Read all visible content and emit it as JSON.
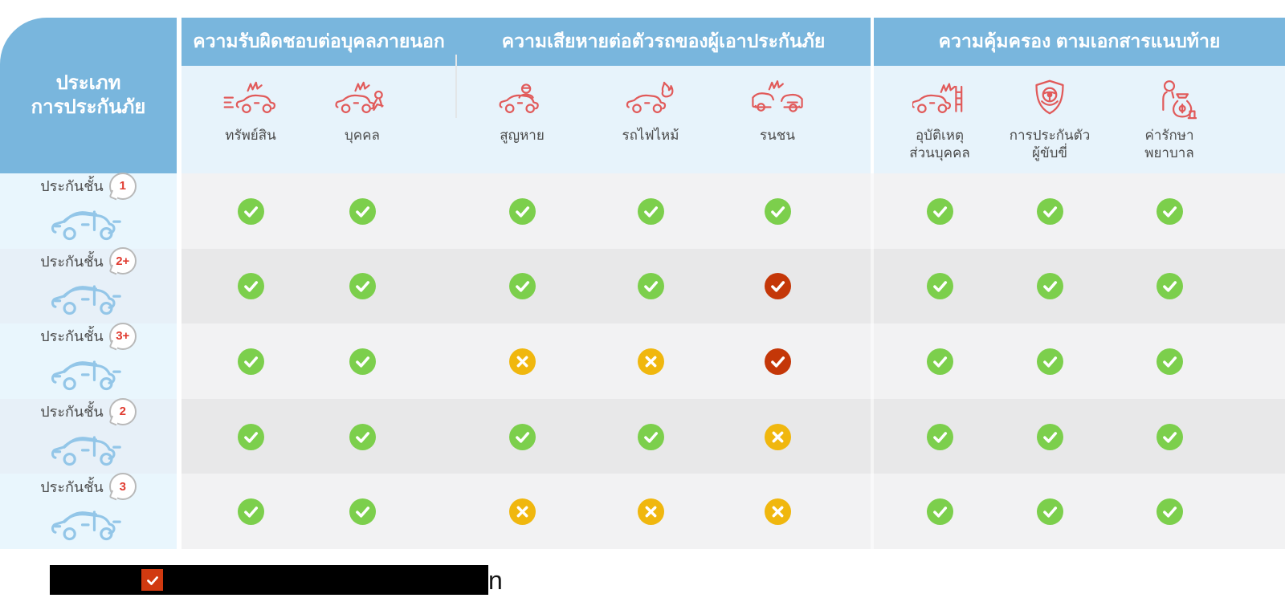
{
  "colors": {
    "header_blue": "#79b6dd",
    "subheader_blue": "#e7f3fb",
    "label_row_odd": "#e9f6fd",
    "label_row_even": "#e7f0f8",
    "data_row_odd": "#f2f2f3",
    "data_row_even": "#e8e8e9",
    "check_green": "#7ccf4c",
    "x_yellow": "#f0b70e",
    "check_red": "#c43708",
    "footnote_square_red": "#d13a10",
    "icon_red": "#e15a5a",
    "car_blue": "#93c6e8",
    "label_text": "#4c4c4c",
    "badge_text_red": "#e03c31"
  },
  "table": {
    "row_header_title_lines": [
      "ประเภท",
      "การประกันภัย"
    ],
    "groups": [
      {
        "title": "ความรับผิดชอบต่อบุคลภายนอก",
        "columns": [
          {
            "label_lines": [
              "ทรัพย์สิน"
            ],
            "icon": "car-rear-crash-icon"
          },
          {
            "label_lines": [
              "บุคคล"
            ],
            "icon": "car-hit-person-icon"
          }
        ]
      },
      {
        "title": "ความเสียหายต่อตัวรถของผู้เอาประกันภัย",
        "columns": [
          {
            "label_lines": [
              "สูญหาย"
            ],
            "icon": "car-theft-icon"
          },
          {
            "label_lines": [
              "รถไฟไหม้"
            ],
            "icon": "car-fire-icon"
          },
          {
            "label_lines": [
              "รนชน"
            ],
            "icon": "car-collision-icon"
          }
        ]
      },
      {
        "title": "ความคุ้มครอง ตามเอกสารแนบท้าย",
        "columns": [
          {
            "label_lines": [
              "อุบัติเหตุ",
              "ส่วนบุคคล"
            ],
            "icon": "car-pole-accident-icon"
          },
          {
            "label_lines": [
              "การประกันตัว",
              "ผู้ขับขี่"
            ],
            "icon": "driver-shield-icon"
          },
          {
            "label_lines": [
              "ค่ารักษา",
              "พยาบาล"
            ],
            "icon": "medical-money-icon"
          }
        ]
      }
    ],
    "rows": [
      {
        "label": "ประกันชั้น",
        "badge": "1",
        "car_icon": "car-suv-icon",
        "marks": [
          "check-green",
          "check-green",
          "check-green",
          "check-green",
          "check-green",
          "check-green",
          "check-green",
          "check-green"
        ]
      },
      {
        "label": "ประกันชั้น",
        "badge": "2+",
        "car_icon": "car-suv-icon",
        "marks": [
          "check-green",
          "check-green",
          "check-green",
          "check-green",
          "check-red",
          "check-green",
          "check-green",
          "check-green"
        ]
      },
      {
        "label": "ประกันชั้น",
        "badge": "3+",
        "car_icon": "car-suv-icon",
        "marks": [
          "check-green",
          "check-green",
          "x-yellow",
          "x-yellow",
          "check-red",
          "check-green",
          "check-green",
          "check-green"
        ]
      },
      {
        "label": "ประกันชั้น",
        "badge": "2",
        "car_icon": "car-suv-icon",
        "marks": [
          "check-green",
          "check-green",
          "check-green",
          "check-green",
          "x-yellow",
          "check-green",
          "check-green",
          "check-green"
        ]
      },
      {
        "label": "ประกันชั้น",
        "badge": "3",
        "car_icon": "car-suv-icon",
        "marks": [
          "check-green",
          "check-green",
          "x-yellow",
          "x-yellow",
          "x-yellow",
          "check-green",
          "check-green",
          "check-green"
        ]
      }
    ]
  },
  "footnote": {
    "redacted_bar": true,
    "icon": "check-square-red-icon",
    "tail_text": "n"
  },
  "chart_data": {
    "type": "table",
    "title": "",
    "row_header": "ประเภท การประกันภัย",
    "column_groups": [
      "ความรับผิดชอบต่อบุคลภายนอก",
      "ความเสียหายต่อตัวรถของผู้เอาประกันภัย",
      "ความคุ้มครอง ตามเอกสารแนบท้าย"
    ],
    "columns": [
      "ทรัพย์สิน",
      "บุคคล",
      "สูญหาย",
      "รถไฟไหม้",
      "รนชน",
      "อุบัติเหตุส่วนบุคคล",
      "การประกันตัวผู้ขับขี่",
      "ค่ารักษาพยาบาล"
    ],
    "rows": [
      "ประกันชั้น 1",
      "ประกันชั้น 2+",
      "ประกันชั้น 3+",
      "ประกันชั้น 2",
      "ประกันชั้น 3"
    ],
    "values": [
      [
        "covered",
        "covered",
        "covered",
        "covered",
        "covered",
        "covered",
        "covered",
        "covered"
      ],
      [
        "covered",
        "covered",
        "covered",
        "covered",
        "covered-special",
        "covered",
        "covered",
        "covered"
      ],
      [
        "covered",
        "covered",
        "not-covered",
        "not-covered",
        "covered-special",
        "covered",
        "covered",
        "covered"
      ],
      [
        "covered",
        "covered",
        "covered",
        "covered",
        "not-covered",
        "covered",
        "covered",
        "covered"
      ],
      [
        "covered",
        "covered",
        "not-covered",
        "not-covered",
        "not-covered",
        "covered",
        "covered",
        "covered"
      ]
    ],
    "legend": {
      "covered": "green check circle",
      "not-covered": "yellow x circle",
      "covered-special": "red check circle"
    }
  }
}
